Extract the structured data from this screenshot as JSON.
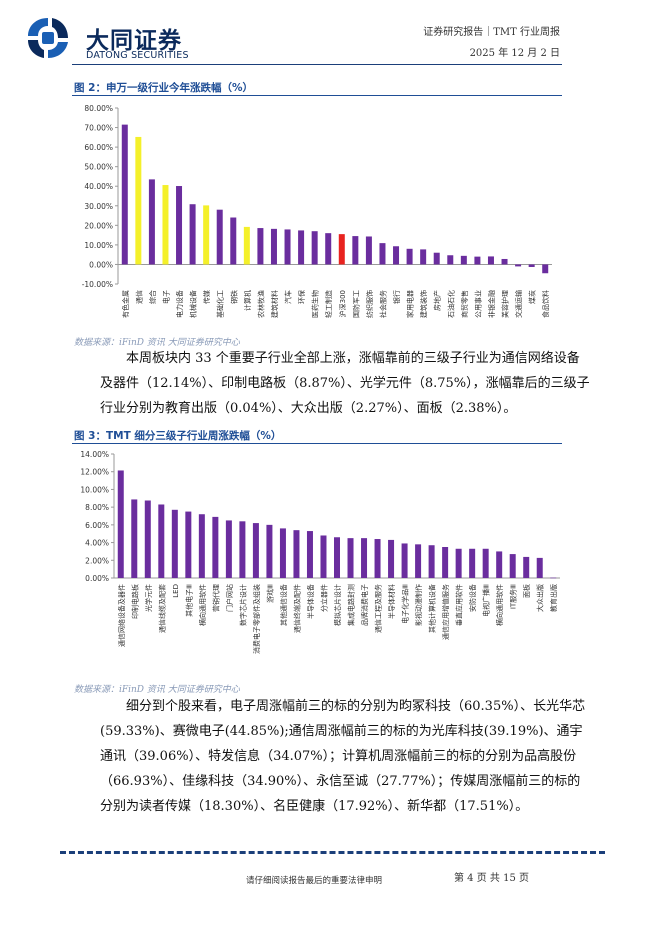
{
  "header": {
    "brand_cn": "大同证券",
    "brand_en": "DATONG SECURITIES",
    "report_type": "证券研究报告｜TMT 行业周报",
    "date": "2025 年 12 月 2 日",
    "colors": {
      "brand": "#0b2a5c",
      "accent": "#1f4e96"
    }
  },
  "figure2": {
    "title": "图 2：申万一级行业今年涨跌幅（%）",
    "source": "数据来源：iFinD 资讯 大同证券研究中心"
  },
  "paragraph1": "本周板块内 33 个重要子行业全部上涨，涨幅靠前的三级子行业为通信网络设备及器件（12.14%）、印制电路板（8.87%）、光学元件（8.75%），涨幅靠后的三级子行业分别为教育出版（0.04%）、大众出版（2.27%）、面板（2.38%）。",
  "figure3": {
    "title": "图 3：TMT 细分三级子行业周涨跌幅（%）",
    "source": "数据来源：iFinD 资讯 大同证券研究中心"
  },
  "paragraph2": "细分到个股来看，电子周涨幅前三的标的分别为昀冢科技（60.35%）、长光华芯(59.33%)、赛微电子(44.85%);通信周涨幅前三的标的为光库科技(39.19%)、通宇通讯（39.06%）、特发信息（34.07%）；计算机周涨幅前三的标的分别为品高股份（66.93%）、佳缘科技（34.90%）、永信至诚（27.77%）；传媒周涨幅前三的标的分别为读者传媒（18.30%）、名臣健康（17.92%）、新华都（17.51%）。",
  "footer": {
    "note": "请仔细阅读报告最后的重要法律申明",
    "page": "第 4 页 共 15 页"
  },
  "chart_data": [
    {
      "type": "bar",
      "categories": [
        "有色金属",
        "通信",
        "综合",
        "电子",
        "电力设备",
        "机械设备",
        "传媒",
        "基础化工",
        "钢铁",
        "计算机",
        "农林牧渔",
        "建筑材料",
        "汽车",
        "环保",
        "医药生物",
        "轻工制造",
        "沪深300",
        "国防军工",
        "纺织服饰",
        "社会服务",
        "银行",
        "家用电器",
        "建筑装饰",
        "房地产",
        "石油石化",
        "商贸零售",
        "公用事业",
        "非银金融",
        "美容护理",
        "交通运输",
        "煤炭",
        "食品饮料"
      ],
      "values": [
        71.5,
        65.2,
        43.5,
        40.6,
        40.1,
        30.8,
        30.2,
        28.0,
        24.0,
        19.2,
        18.6,
        18.2,
        17.9,
        17.4,
        17.0,
        16.0,
        15.5,
        14.5,
        14.3,
        10.9,
        9.3,
        8.0,
        7.7,
        6.0,
        4.7,
        4.4,
        4.0,
        4.1,
        2.8,
        -1.0,
        -1.3,
        -4.5
      ],
      "colors": {
        "default": "#6a2d9e",
        "tmt": "#f4f02a",
        "benchmark": "#e8231f"
      },
      "highlight_tmt": [
        "通信",
        "电子",
        "传媒",
        "计算机"
      ],
      "highlight_benchmark": [
        "沪深300"
      ],
      "ylim": [
        -10,
        80
      ],
      "yticks": [
        -10,
        0,
        10,
        20,
        30,
        40,
        50,
        60,
        70,
        80
      ],
      "ytick_labels": [
        "-10.00%",
        "0.00%",
        "10.00%",
        "20.00%",
        "30.00%",
        "40.00%",
        "50.00%",
        "60.00%",
        "70.00%",
        "80.00%"
      ],
      "grid": false,
      "legend": "none"
    },
    {
      "type": "bar",
      "categories": [
        "通信网络设备及器件",
        "印制电路板",
        "光学元件",
        "通信线缆及配套",
        "LED",
        "其他电子Ⅲ",
        "横向通用软件",
        "营销代理",
        "门户网站",
        "数字芯片设计",
        "消费电子零部件及组装",
        "游戏Ⅲ",
        "其他通信设备",
        "通信终端及配件",
        "半导体设备",
        "分立器件",
        "模拟芯片设计",
        "集成电路封测",
        "品牌消费电子",
        "通信工程及服务",
        "半导体材料",
        "电子化学品Ⅲ",
        "影视动漫制作",
        "其他计算机设备",
        "通信应用增值服务",
        "垂直应用软件",
        "安防设备",
        "电视广播Ⅲ",
        "横向通用软件",
        "IT服务Ⅲ",
        "面板",
        "大众出版",
        "教育出版"
      ],
      "values": [
        12.14,
        8.87,
        8.75,
        8.3,
        7.7,
        7.5,
        7.2,
        6.9,
        6.5,
        6.4,
        6.2,
        6.0,
        5.6,
        5.4,
        5.3,
        4.8,
        4.6,
        4.5,
        4.5,
        4.4,
        4.3,
        3.9,
        3.8,
        3.7,
        3.5,
        3.3,
        3.3,
        3.3,
        3.0,
        2.7,
        2.38,
        2.27,
        0.04
      ],
      "colors": {
        "default": "#6a2d9e"
      },
      "ylim": [
        0,
        14
      ],
      "yticks": [
        0,
        2,
        4,
        6,
        8,
        10,
        12,
        14
      ],
      "ytick_labels": [
        "0.00%",
        "2.00%",
        "4.00%",
        "6.00%",
        "8.00%",
        "10.00%",
        "12.00%",
        "14.00%"
      ],
      "grid": false,
      "legend": "none"
    }
  ]
}
